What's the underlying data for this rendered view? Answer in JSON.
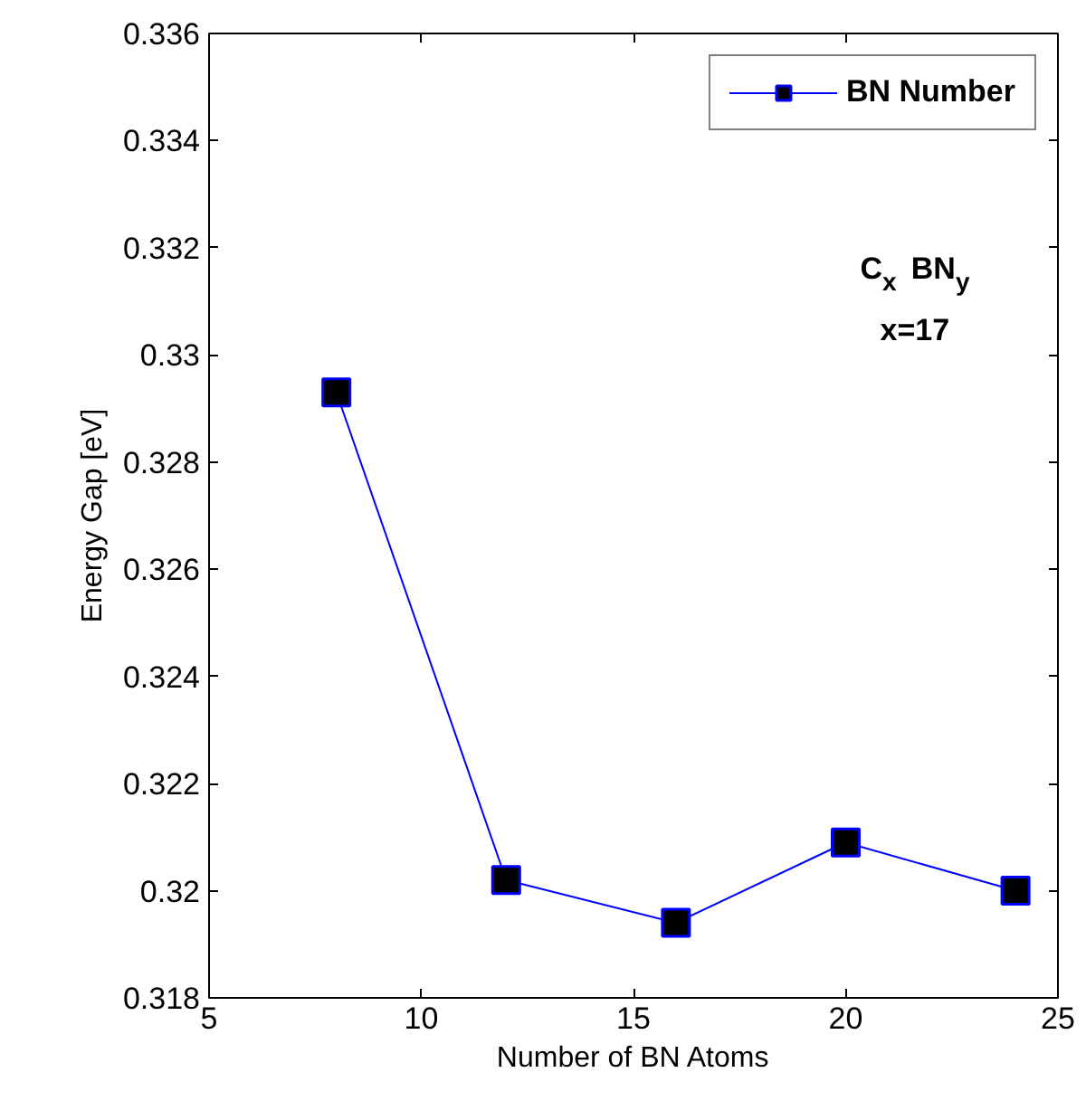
{
  "chart_data": {
    "type": "line",
    "xlabel": "Number of BN Atoms",
    "ylabel": "Energy Gap [eV]",
    "x": [
      8,
      12,
      16,
      20,
      24
    ],
    "series": [
      {
        "name": "BN Number",
        "color": "#0000ff",
        "values": [
          0.3293,
          0.3202,
          0.3194,
          0.3209,
          0.32
        ]
      }
    ],
    "xlim": [
      5,
      25
    ],
    "xticks": [
      5,
      10,
      15,
      20,
      25
    ],
    "ylim": [
      0.318,
      0.336
    ],
    "yticks": [
      0.318,
      0.32,
      0.322,
      0.324,
      0.326,
      0.328,
      0.33,
      0.332,
      0.334,
      0.336
    ],
    "marker": "square",
    "line_style": "solid",
    "grid": false,
    "legend": "top right",
    "annotations": [
      "C$_{x}$ BN$_{y}$",
      "x=17"
    ]
  }
}
